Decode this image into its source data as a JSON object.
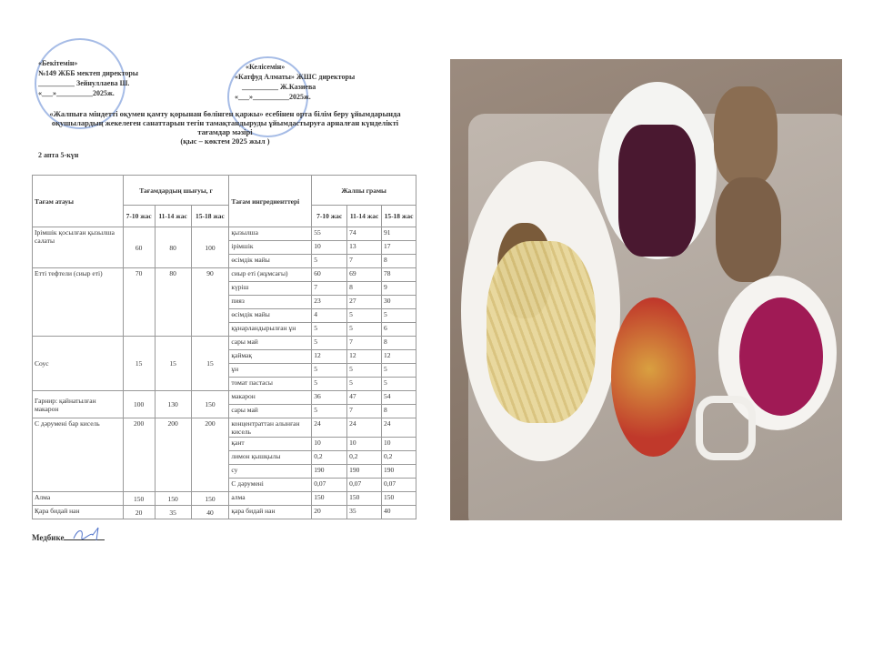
{
  "approval_left": {
    "title": "«Бекітемін»",
    "line1": "№149 ЖББ мектеп директоры",
    "line2": "__________ Зейнуллаева Ш.",
    "line3": "«___»__________2025ж."
  },
  "approval_right": {
    "title": "«Келісемін»",
    "line1": "«Катфуд Алматы» ЖШС директоры",
    "line2": "__________ Ж.Казиева",
    "line3": "«___»__________2025ж."
  },
  "doc_title": {
    "line1": "«Жалпыға міндетті оқумен қамту қорынан бөлінген қаржы» есебінен орта білім беру ұйымдарында",
    "line2": "оқушылардың жекелеген санаттарын тегін тамақтандыруды ұйымдастыруға арналған күнделікті",
    "line3": "тағамдар мәзірі",
    "line4": "(қыс – көктем 2025 жыл )"
  },
  "day_label": "2 апта 5-күн",
  "table": {
    "headers": {
      "dish": "Тағам атауы",
      "yield": "Тағамдардың шығуы, г",
      "ingredients": "Тағам ингредиенттері",
      "gross": "Жалпы грамы",
      "ages": [
        "7-10 жас",
        "11-14 жас",
        "15-18 жас"
      ]
    },
    "dishes": [
      {
        "name": "Ірімшік қосылған қызылша салаты",
        "yield": [
          "60",
          "80",
          "100"
        ],
        "ingredients": [
          [
            "қызылша",
            "55",
            "74",
            "91"
          ],
          [
            "ірімшік",
            "10",
            "13",
            "17"
          ],
          [
            "өсімдік майы",
            "5",
            "7",
            "8"
          ]
        ]
      },
      {
        "name": "Етті тефтели (сиыр еті)",
        "yield": [
          "70",
          "80",
          "90"
        ],
        "ingredients": [
          [
            "сиыр еті (жұмсағы)",
            "60",
            "69",
            "78"
          ],
          [
            "күріш",
            "7",
            "8",
            "9"
          ],
          [
            "пияз",
            "23",
            "27",
            "30"
          ],
          [
            "өсімдік майы",
            "4",
            "5",
            "5"
          ],
          [
            "құнарландырылған ұн",
            "5",
            "5",
            "6"
          ]
        ]
      },
      {
        "name": "Соус",
        "yield": [
          "15",
          "15",
          "15"
        ],
        "ingredients": [
          [
            "сары май",
            "5",
            "7",
            "8"
          ],
          [
            "қаймақ",
            "12",
            "12",
            "12"
          ],
          [
            "ұн",
            "5",
            "5",
            "5"
          ],
          [
            "томат пастасы",
            "5",
            "5",
            "5"
          ]
        ]
      },
      {
        "name": "Гарнир: қайнатылған макарон",
        "yield": [
          "100",
          "130",
          "150"
        ],
        "ingredients": [
          [
            "макарон",
            "36",
            "47",
            "54"
          ],
          [
            "сары май",
            "5",
            "7",
            "8"
          ]
        ]
      },
      {
        "name": "С дәрумені бар кисель",
        "yield": [
          "200",
          "200",
          "200"
        ],
        "ingredients": [
          [
            "концентраттан алынған кисель",
            "24",
            "24",
            "24"
          ],
          [
            "қант",
            "10",
            "10",
            "10"
          ],
          [
            "лимон қышқылы",
            "0,2",
            "0,2",
            "0,2"
          ],
          [
            "су",
            "190",
            "190",
            "190"
          ],
          [
            "С дәрумені",
            "0,07",
            "0,07",
            "0,07"
          ]
        ]
      },
      {
        "name": "Алма",
        "yield": [
          "150",
          "150",
          "150"
        ],
        "ingredients": [
          [
            "алма",
            "150",
            "150",
            "150"
          ]
        ]
      },
      {
        "name": "Қара бидай нан",
        "yield": [
          "20",
          "35",
          "40"
        ],
        "ingredients": [
          [
            "қара бидай нан",
            "20",
            "35",
            "40"
          ]
        ]
      }
    ]
  },
  "nurse_label": "Медбике"
}
